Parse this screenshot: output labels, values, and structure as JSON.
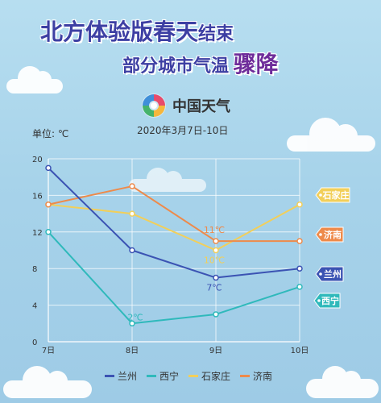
{
  "header": {
    "title_line1_part1": "北方体验版春天",
    "title_line1_part2": "结束",
    "title_line2_part1": "部分城市气温",
    "title_line2_part2": "骤降"
  },
  "logo": {
    "text": "中国天气"
  },
  "unit_label": "单位: ℃",
  "date_range": "2020年3月7日-10日",
  "colors": {
    "lanzhou": "#3b53b3",
    "xining": "#2fb9bb",
    "shijiazhuang": "#f2cf5a",
    "jinan": "#ee8a4a"
  },
  "chart_data": {
    "type": "line",
    "categories": [
      "7日",
      "8日",
      "9日",
      "10日"
    ],
    "ylim": [
      0,
      20
    ],
    "yticks": [
      0,
      4,
      8,
      12,
      16,
      20
    ],
    "series": [
      {
        "key": "lanzhou",
        "name": "兰州",
        "values": [
          19,
          10,
          7,
          8
        ]
      },
      {
        "key": "xining",
        "name": "西宁",
        "values": [
          12,
          2,
          3,
          6
        ]
      },
      {
        "key": "shijiazhuang",
        "name": "石家庄",
        "values": [
          15,
          14,
          10,
          15
        ]
      },
      {
        "key": "jinan",
        "name": "济南",
        "values": [
          15,
          17,
          11,
          11
        ]
      }
    ],
    "annotations": [
      {
        "series": "jinan",
        "index": 2,
        "text": "11℃"
      },
      {
        "series": "shijiazhuang",
        "index": 2,
        "text": "10℃"
      },
      {
        "series": "lanzhou",
        "index": 2,
        "text": "7℃"
      },
      {
        "series": "xining",
        "index": 1,
        "text": "2℃"
      }
    ],
    "end_tags": [
      "石家庄",
      "济南",
      "兰州",
      "西宁"
    ]
  }
}
